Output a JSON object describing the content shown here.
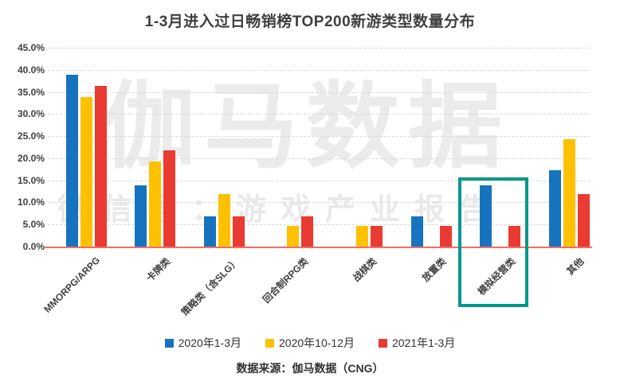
{
  "title": "1-3月进入过日畅销榜TOP200新游类型数量分布",
  "watermark": {
    "main": "伽马数据",
    "sub": "微信号：游戏产业报告"
  },
  "source": "数据来源：伽马数据（CNG）",
  "chart_data": {
    "type": "bar",
    "title": "1-3月进入过日畅销榜TOP200新游类型数量分布",
    "categories": [
      "MMORPG/ARPG",
      "卡牌类",
      "策略类（含SLG）",
      "回合制RPG类",
      "战棋类",
      "放置类",
      "模拟经营类",
      "其他"
    ],
    "series": [
      {
        "name": "2020年1-3月",
        "color": "#1673c0",
        "values": [
          39.0,
          14.0,
          7.0,
          0,
          0,
          7.0,
          14.0,
          17.5
        ]
      },
      {
        "name": "2020年10-12月",
        "color": "#fdc101",
        "values": [
          34.0,
          19.5,
          12.0,
          4.9,
          4.9,
          0,
          0,
          24.5
        ]
      },
      {
        "name": "2021年1-3月",
        "color": "#e93b32",
        "values": [
          36.5,
          22.0,
          7.0,
          7.0,
          4.9,
          4.9,
          4.9,
          12.0
        ]
      }
    ],
    "ylabel": "",
    "xlabel": "",
    "ylim": [
      0,
      45
    ],
    "ytick_step": 5,
    "ytick_labels": [
      "0.0%",
      "5.0%",
      "10.0%",
      "15.0%",
      "20.0%",
      "25.0%",
      "30.0%",
      "35.0%",
      "40.0%",
      "45.0%"
    ],
    "grid": "horizontal-dashed",
    "gridline_color": "#d9d9d9",
    "axis_line_color": "#ef6e65",
    "legend_position": "bottom",
    "highlight": {
      "category": "模拟经营类",
      "box_color": "#00988a"
    }
  }
}
